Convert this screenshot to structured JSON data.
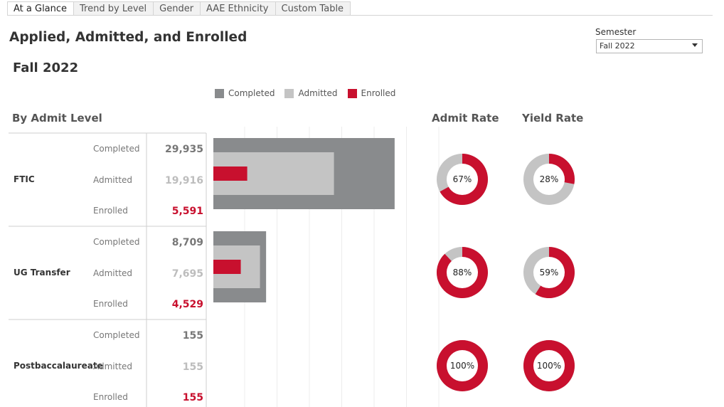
{
  "tabs": [
    "At a Glance",
    "Trend by Level",
    "Gender",
    "AAE Ethnicity",
    "Custom Table"
  ],
  "active_tab": 0,
  "page_title": "Applied, Admitted, and Enrolled",
  "subtitle": "Fall 2022",
  "semester": {
    "label": "Semester",
    "selected": "Fall 2022"
  },
  "sections": {
    "by_level": "By Admit Level",
    "admit_rate": "Admit Rate",
    "yield_rate": "Yield Rate"
  },
  "colors": {
    "completed": "#898b8d",
    "admitted": "#c4c4c4",
    "enrolled": "#c8102e"
  },
  "chart_data": {
    "type": "bar",
    "legend": [
      "Completed",
      "Admitted",
      "Enrolled"
    ],
    "measures": [
      "Completed",
      "Admitted",
      "Enrolled"
    ],
    "xlim": [
      0,
      35000
    ],
    "grid": true,
    "levels": [
      {
        "name": "FTIC",
        "completed": 29935,
        "admitted": 19916,
        "enrolled": 5591,
        "labels": [
          "29,935",
          "19,916",
          "5,591"
        ],
        "admit_rate": 67,
        "yield_rate": 28,
        "admit_label": "67%",
        "yield_label": "28%"
      },
      {
        "name": "UG Transfer",
        "completed": 8709,
        "admitted": 7695,
        "enrolled": 4529,
        "labels": [
          "8,709",
          "7,695",
          "4,529"
        ],
        "admit_rate": 88,
        "yield_rate": 59,
        "admit_label": "88%",
        "yield_label": "59%"
      },
      {
        "name": "Postbaccalaureate",
        "completed": 155,
        "admitted": 155,
        "enrolled": 155,
        "labels": [
          "155",
          "155",
          "155"
        ],
        "admit_rate": 100,
        "yield_rate": 100,
        "admit_label": "100%",
        "yield_label": "100%"
      }
    ]
  }
}
